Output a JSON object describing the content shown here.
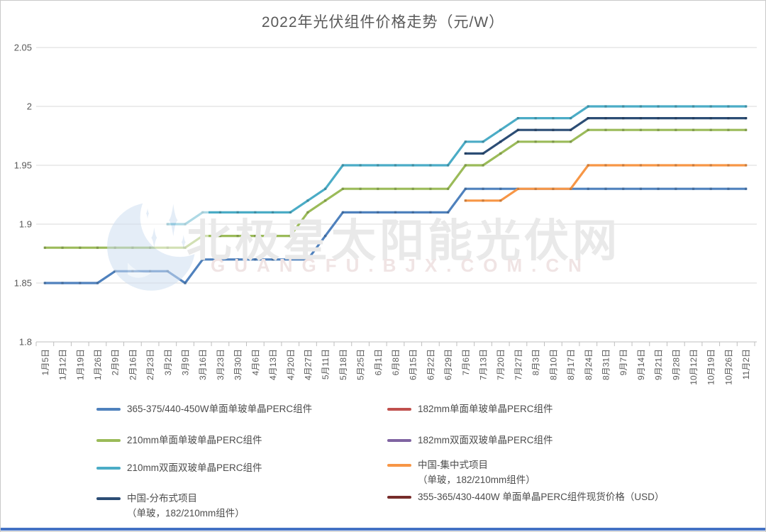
{
  "page": {
    "watermark": {
      "cn": "北极星太阳能光伏网",
      "en": "GUANGFU.BJX.COM.CN"
    },
    "accent_bar_color": "#4472C4"
  },
  "chart_data": {
    "type": "line",
    "title": "2022年光伏组件价格走势（元/W）",
    "xlabel": "",
    "ylabel": "元/W",
    "ylim": [
      1.8,
      2.05
    ],
    "grid": true,
    "legend_position": "bottom",
    "yticks": [
      {
        "v": 2.05,
        "label": "2.05"
      },
      {
        "v": 2.0,
        "label": "2"
      },
      {
        "v": 1.95,
        "label": "1.95"
      },
      {
        "v": 1.9,
        "label": "1.9"
      },
      {
        "v": 1.85,
        "label": "1.85"
      },
      {
        "v": 1.8,
        "label": "1.8"
      }
    ],
    "categories": [
      "1月5日",
      "1月12日",
      "1月19日",
      "1月26日",
      "2月9日",
      "2月16日",
      "2月23日",
      "3月2日",
      "3月9日",
      "3月16日",
      "3月23日",
      "3月30日",
      "4月6日",
      "4月13日",
      "4月20日",
      "4月27日",
      "5月11日",
      "5月18日",
      "5月25日",
      "6月1日",
      "6月8日",
      "6月15日",
      "6月22日",
      "6月29日",
      "7月6日",
      "7月13日",
      "7月20日",
      "7月27日",
      "8月3日",
      "8月10日",
      "8月17日",
      "8月24日",
      "8月31日",
      "9月7日",
      "9月14日",
      "9月21日",
      "9月28日",
      "10月12日",
      "10月19日",
      "10月26日",
      "11月2日"
    ],
    "series": [
      {
        "name": "365-375/440-450W单面单玻单晶PERC组件",
        "color": "#4F81BD",
        "values": [
          1.85,
          1.85,
          1.85,
          1.85,
          1.86,
          1.86,
          1.86,
          1.86,
          1.85,
          1.87,
          1.87,
          1.87,
          1.87,
          1.87,
          1.87,
          1.87,
          1.89,
          1.91,
          1.91,
          1.91,
          1.91,
          1.91,
          1.91,
          1.91,
          1.93,
          1.93,
          1.93,
          1.93,
          1.93,
          1.93,
          1.93,
          1.93,
          1.93,
          1.93,
          1.93,
          1.93,
          1.93,
          1.93,
          1.93,
          1.93,
          1.93
        ]
      },
      {
        "name": "182mm单面单玻单晶PERC组件",
        "color": "#C0504D",
        "values": []
      },
      {
        "name": "210mm单面单玻单晶PERC组件",
        "color": "#9BBB59",
        "values": [
          1.88,
          1.88,
          1.88,
          1.88,
          1.88,
          1.88,
          1.88,
          1.88,
          1.88,
          1.89,
          1.89,
          1.89,
          1.89,
          1.89,
          1.89,
          1.91,
          1.92,
          1.93,
          1.93,
          1.93,
          1.93,
          1.93,
          1.93,
          1.93,
          1.95,
          1.95,
          1.96,
          1.97,
          1.97,
          1.97,
          1.97,
          1.98,
          1.98,
          1.98,
          1.98,
          1.98,
          1.98,
          1.98,
          1.98,
          1.98,
          1.98
        ]
      },
      {
        "name": "182mm双面双玻单晶PERC组件",
        "color": "#8064A2",
        "values": []
      },
      {
        "name": "210mm双面双玻单晶PERC组件",
        "color": "#4BACC6",
        "values": [
          null,
          null,
          null,
          null,
          null,
          null,
          null,
          1.9,
          1.9,
          1.91,
          1.91,
          1.91,
          1.91,
          1.91,
          1.91,
          1.92,
          1.93,
          1.95,
          1.95,
          1.95,
          1.95,
          1.95,
          1.95,
          1.95,
          1.97,
          1.97,
          1.98,
          1.99,
          1.99,
          1.99,
          1.99,
          2.0,
          2.0,
          2.0,
          2.0,
          2.0,
          2.0,
          2.0,
          2.0,
          2.0,
          2.0
        ]
      },
      {
        "name": "中国-集中式项目\n（单玻，182/210mm组件）",
        "color": "#F79646",
        "values": [
          null,
          null,
          null,
          null,
          null,
          null,
          null,
          null,
          null,
          null,
          null,
          null,
          null,
          null,
          null,
          null,
          null,
          null,
          null,
          null,
          null,
          null,
          null,
          null,
          1.92,
          1.92,
          1.92,
          1.93,
          1.93,
          1.93,
          1.93,
          1.95,
          1.95,
          1.95,
          1.95,
          1.95,
          1.95,
          1.95,
          1.95,
          1.95,
          1.95
        ]
      },
      {
        "name": "中国-分布式项目\n（单玻，182/210mm组件）",
        "color": "#2C4D75",
        "values": [
          null,
          null,
          null,
          null,
          null,
          null,
          null,
          null,
          null,
          null,
          null,
          null,
          null,
          null,
          null,
          null,
          null,
          null,
          null,
          null,
          null,
          null,
          null,
          null,
          1.96,
          1.96,
          1.97,
          1.98,
          1.98,
          1.98,
          1.98,
          1.99,
          1.99,
          1.99,
          1.99,
          1.99,
          1.99,
          1.99,
          1.99,
          1.99,
          1.99
        ]
      },
      {
        "name": "355-365/430-440W 单面单晶PERC组件现货价格（USD）",
        "color": "#772C2A",
        "values": []
      }
    ]
  }
}
